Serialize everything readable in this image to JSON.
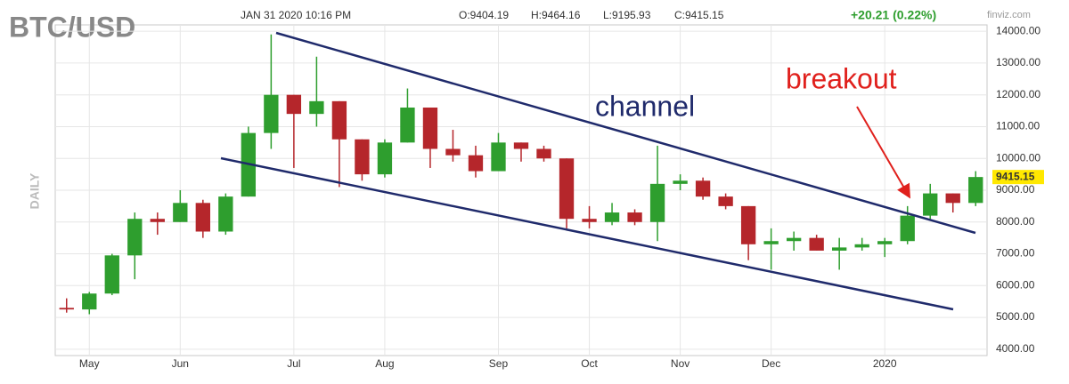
{
  "chart_data": {
    "type": "candlestick",
    "title": "BTC/USD",
    "timestamp": "JAN 31 2020 10:16 PM",
    "quote": [
      "O:9404.19",
      "H:9464.16",
      "L:9195.93",
      "C:9415.15"
    ],
    "change": "+20.21 (0.22%)",
    "source": "finviz.com",
    "y_label": "DAILY",
    "annotations": [
      "channel",
      "breakout"
    ],
    "last_price": {
      "value": 9415.15,
      "label": "9415.15"
    },
    "up_color": "#2e9e2e",
    "down_color": "#b5262b",
    "grid": true,
    "ylim": [
      3800,
      14200
    ],
    "yticks": [
      {
        "value": 4000,
        "label": "4000.00"
      },
      {
        "value": 5000,
        "label": "5000.00"
      },
      {
        "value": 6000,
        "label": "6000.00"
      },
      {
        "value": 7000,
        "label": "7000.00"
      },
      {
        "value": 8000,
        "label": "8000.00"
      },
      {
        "value": 9000,
        "label": "9000.00"
      },
      {
        "value": 10000,
        "label": "10000.00"
      },
      {
        "value": 11000,
        "label": "11000.00"
      },
      {
        "value": 12000,
        "label": "12000.00"
      },
      {
        "value": 13000,
        "label": "13000.00"
      },
      {
        "value": 14000,
        "label": "14000.00"
      }
    ],
    "categories": [
      null,
      "May",
      null,
      null,
      null,
      "Jun",
      null,
      null,
      null,
      null,
      "Jul",
      null,
      null,
      null,
      "Aug",
      null,
      null,
      null,
      null,
      "Sep",
      null,
      null,
      null,
      "Oct",
      null,
      null,
      null,
      "Nov",
      null,
      null,
      null,
      "Dec",
      null,
      null,
      null,
      null,
      "2020",
      null,
      null,
      null,
      null
    ],
    "open": [
      5300,
      5250,
      5750,
      6950,
      8100,
      8000,
      8600,
      7700,
      8800,
      10800,
      12000,
      11400,
      11800,
      10600,
      9500,
      10500,
      11600,
      10300,
      10100,
      9600,
      10500,
      10300,
      10000,
      8100,
      8000,
      8300,
      8000,
      9200,
      9300,
      8800,
      8500,
      7300,
      7400,
      7500,
      7100,
      7200,
      7300,
      7400,
      8200,
      8900,
      8600
    ],
    "high": [
      5600,
      5800,
      7000,
      8300,
      8300,
      9000,
      8700,
      8900,
      11000,
      13900,
      12000,
      13200,
      11800,
      10600,
      10600,
      12200,
      11600,
      10900,
      10400,
      10800,
      10500,
      10400,
      10000,
      8500,
      8600,
      8400,
      10400,
      9500,
      9400,
      8900,
      8500,
      7800,
      7700,
      7600,
      7500,
      7500,
      7500,
      8500,
      9200,
      8900,
      9600
    ],
    "low": [
      5150,
      5100,
      5700,
      6200,
      7600,
      8000,
      7500,
      7600,
      8800,
      10300,
      9700,
      11000,
      9100,
      9300,
      9400,
      10500,
      9700,
      9900,
      9400,
      9600,
      9900,
      9900,
      7800,
      7800,
      7900,
      7900,
      7400,
      9000,
      8700,
      8400,
      6800,
      6500,
      7100,
      7100,
      6500,
      7100,
      6900,
      7300,
      8100,
      8300,
      8500
    ],
    "close": [
      5250,
      5750,
      6950,
      8100,
      8000,
      8600,
      7700,
      8800,
      10800,
      12000,
      11400,
      11800,
      10600,
      9500,
      10500,
      11600,
      10300,
      10100,
      9600,
      10500,
      10300,
      10000,
      8100,
      8000,
      8300,
      8000,
      9200,
      9300,
      8800,
      8500,
      7300,
      7400,
      7500,
      7100,
      7200,
      7300,
      7400,
      8200,
      8900,
      8600,
      9415.15
    ]
  }
}
